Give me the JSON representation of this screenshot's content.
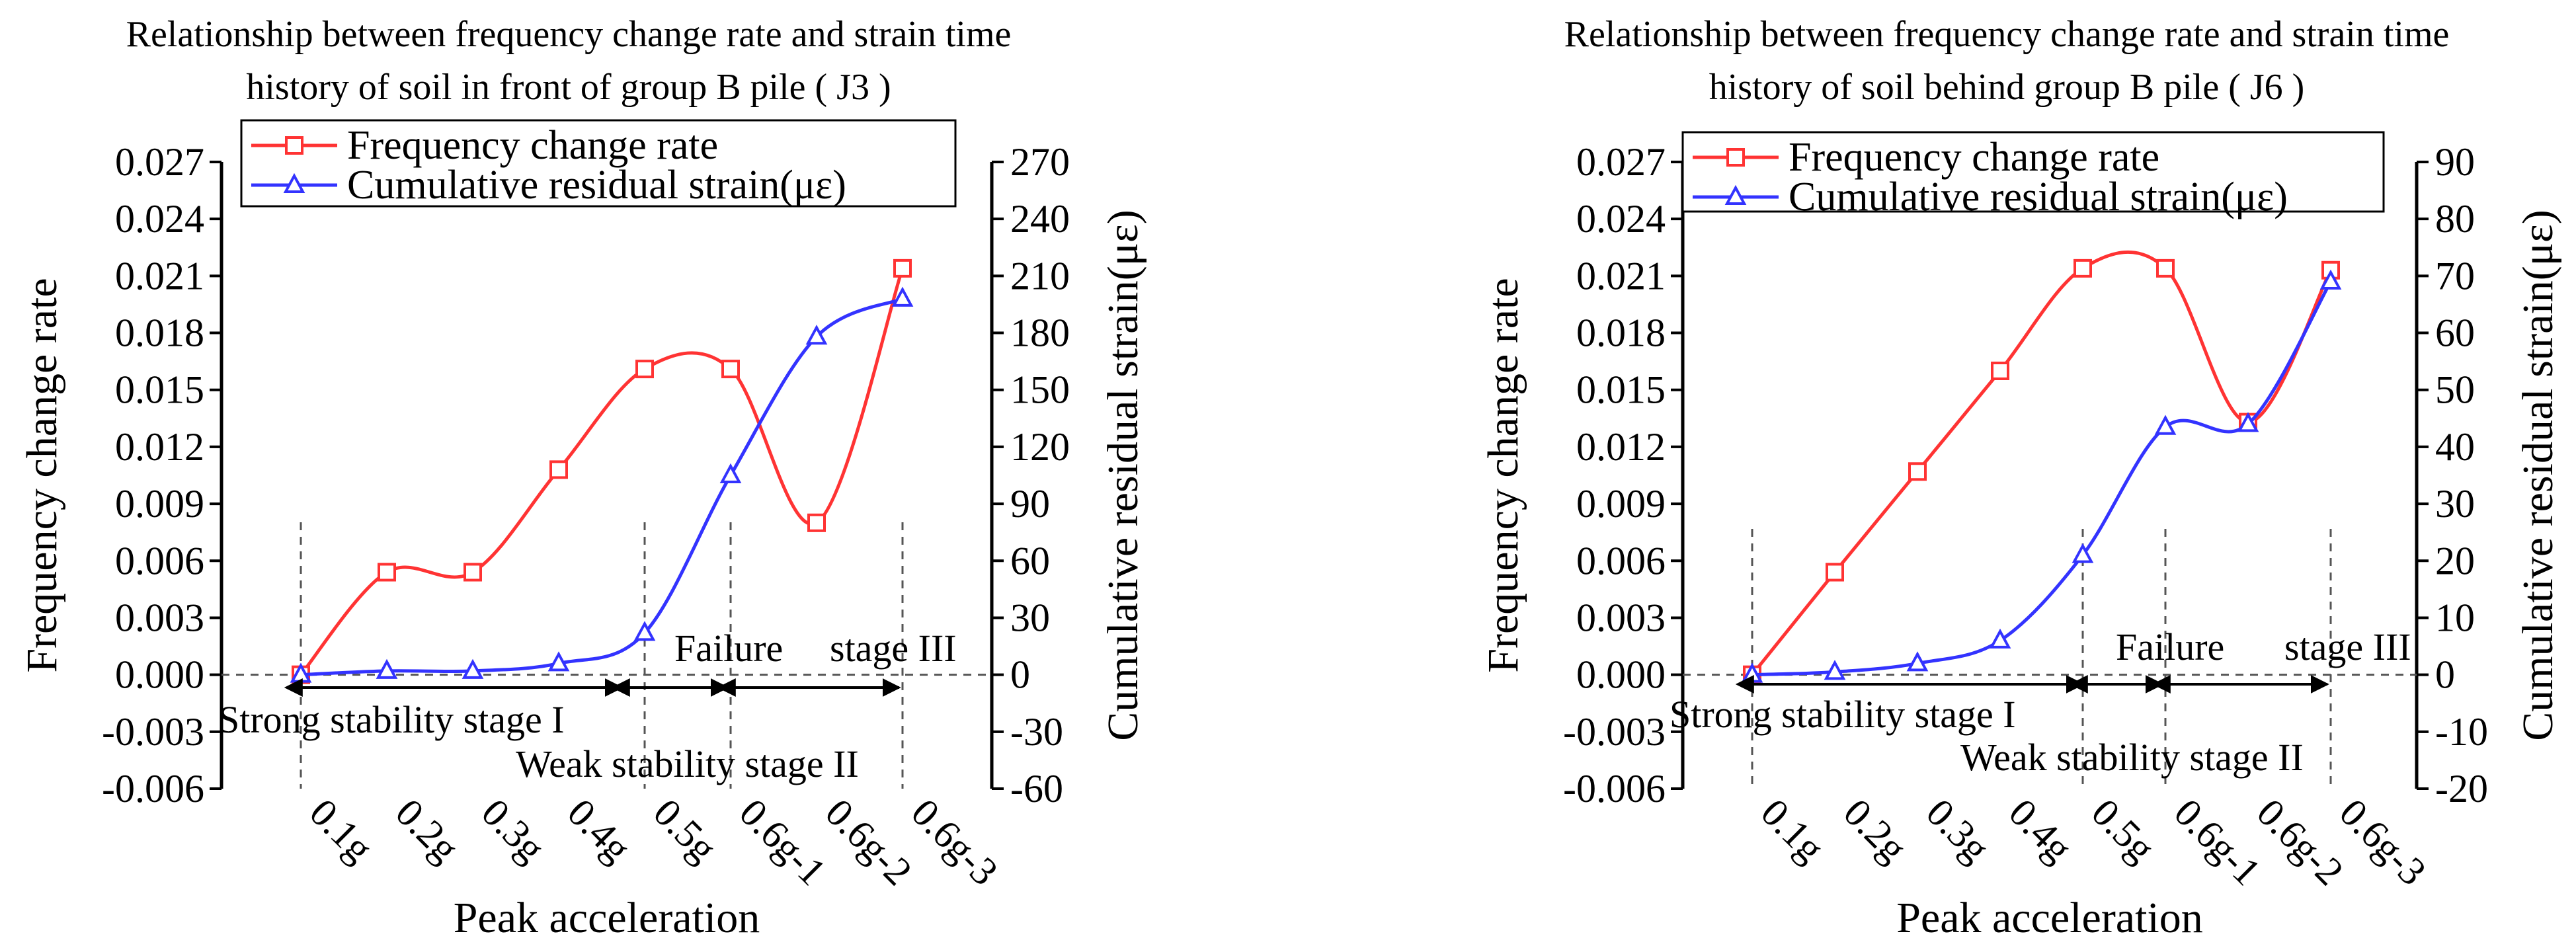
{
  "colors": {
    "frequency": "#ff3333",
    "strain": "#3333ff",
    "axis": "#000000",
    "guide": "#555555"
  },
  "chart_data": [
    {
      "id": "j3",
      "type": "line",
      "title_lines": [
        "Relationship between frequency change rate and strain time",
        "history of soil in front of group B pile ( J3 )"
      ],
      "xlabel": "Peak acceleration",
      "ylabel": "Frequency change rate",
      "y2label": "Cumulative residual strain(με)",
      "categories": [
        "0.1g",
        "0.2g",
        "0.3g",
        "0.4g",
        "0.5g",
        "0.6g-1",
        "0.6g-2",
        "0.6g-3"
      ],
      "ylim": [
        -0.006,
        0.027
      ],
      "y_ticks": [
        "0.027",
        "0.024",
        "0.021",
        "0.018",
        "0.015",
        "0.012",
        "0.009",
        "0.006",
        "0.003",
        "0.000",
        "-0.003",
        "-0.006"
      ],
      "y2lim": [
        -60,
        270
      ],
      "y2_ticks": [
        "270",
        "240",
        "210",
        "180",
        "150",
        "120",
        "90",
        "60",
        "30",
        "0",
        "-30",
        "-60"
      ],
      "legend": [
        "Frequency change rate",
        "Cumulative residual strain(με)"
      ],
      "series": [
        {
          "name": "Frequency change rate",
          "axis": "left",
          "marker": "square",
          "values": [
            0.0,
            0.0054,
            0.0054,
            0.0108,
            0.0161,
            0.0161,
            0.008,
            0.0214
          ]
        },
        {
          "name": "Cumulative residual strain(με)",
          "axis": "right",
          "marker": "triangle",
          "values": [
            0,
            2,
            2,
            6,
            22,
            105,
            178,
            198
          ]
        }
      ],
      "stage_labels": [
        "Strong stability stage I",
        "Weak stability stage II",
        "Failure",
        "stage III"
      ]
    },
    {
      "id": "j6",
      "type": "line",
      "title_lines": [
        "Relationship between frequency change rate and strain time",
        "history of soil behind group B pile ( J6 )"
      ],
      "xlabel": "Peak acceleration",
      "ylabel": "Frequency change rate",
      "y2label": "Cumulative residual strain(με)",
      "categories": [
        "0.1g",
        "0.2g",
        "0.3g",
        "0.4g",
        "0.5g",
        "0.6g-1",
        "0.6g-2",
        "0.6g-3"
      ],
      "ylim": [
        -0.006,
        0.027
      ],
      "y_ticks": [
        "0.027",
        "0.024",
        "0.021",
        "0.018",
        "0.015",
        "0.012",
        "0.009",
        "0.006",
        "0.003",
        "0.000",
        "-0.003",
        "-0.006"
      ],
      "y2lim": [
        -20,
        90
      ],
      "y2_ticks": [
        "90",
        "80",
        "70",
        "60",
        "50",
        "40",
        "30",
        "20",
        "10",
        "0",
        "-10",
        "-20"
      ],
      "legend": [
        "Frequency change rate",
        "Cumulative residual strain(με)"
      ],
      "series": [
        {
          "name": "Frequency change rate",
          "axis": "left",
          "marker": "square",
          "values": [
            0.0,
            0.0054,
            0.0107,
            0.016,
            0.0214,
            0.0214,
            0.0133,
            0.0213
          ]
        },
        {
          "name": "Cumulative residual strain(με)",
          "axis": "right",
          "marker": "triangle",
          "values": [
            0,
            0.5,
            2,
            6,
            21,
            43.5,
            44,
            69
          ]
        }
      ],
      "stage_labels": [
        "Strong stability stage I",
        "Weak stability stage II",
        "Failure",
        "stage III"
      ]
    }
  ]
}
